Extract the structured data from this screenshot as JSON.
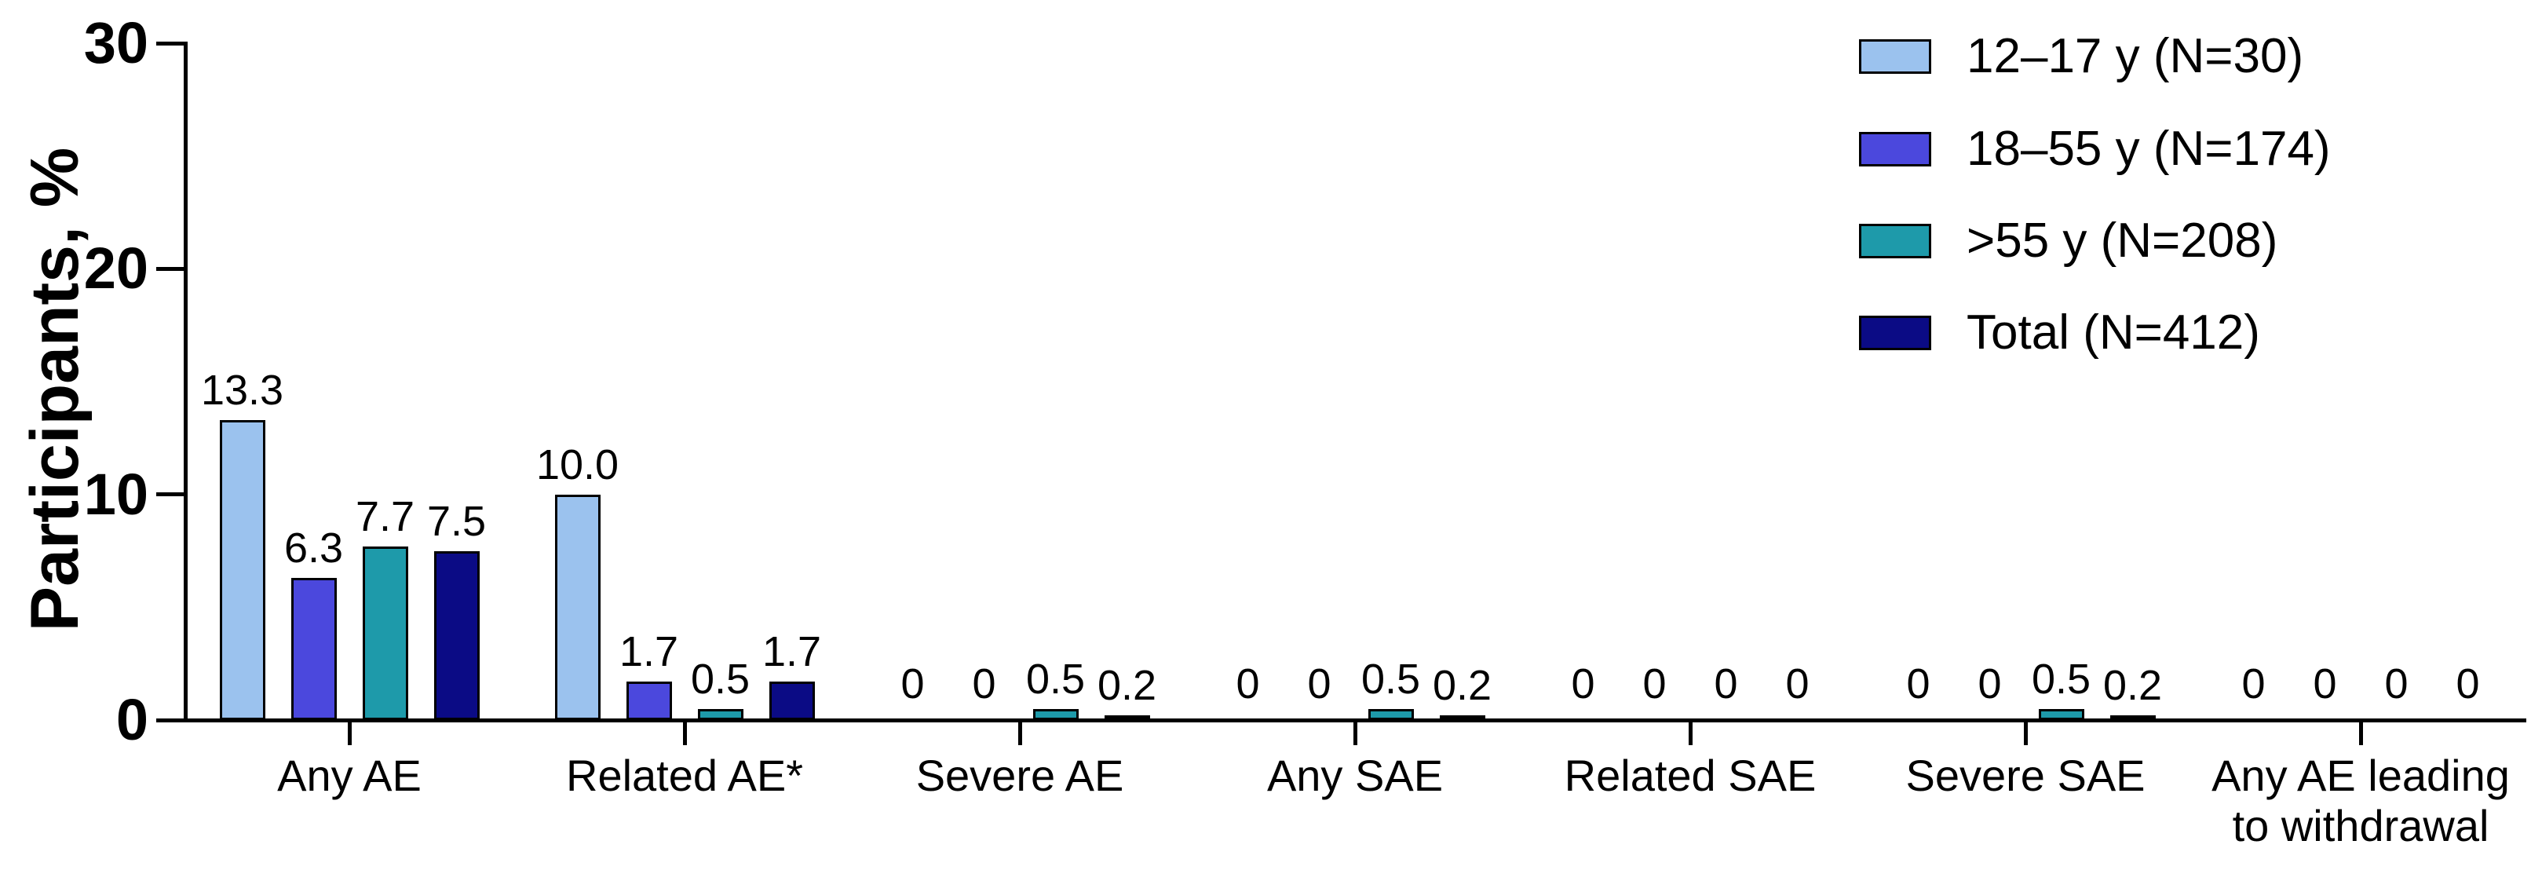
{
  "figure": {
    "background": "#ffffff",
    "axis_color": "#000000",
    "bar_outline_color": "#000000"
  },
  "chart_data": {
    "type": "bar",
    "title": "",
    "xlabel": "",
    "ylabel": "Participants, %",
    "ylim": [
      0,
      30
    ],
    "yticks": [
      "0",
      "10",
      "20",
      "30"
    ],
    "grid": false,
    "legend_position": "top-right",
    "categories": [
      "Any AE",
      "Related AE*",
      "Severe AE",
      "Any SAE",
      "Related SAE",
      "Severe SAE",
      "Any AE leading\nto withdrawal"
    ],
    "series": [
      {
        "name": "12–17 y (N=30)",
        "color": "#9BC2EE",
        "values": [
          13.3,
          10.0,
          0,
          0,
          0,
          0,
          0
        ]
      },
      {
        "name": "18–55 y (N=174)",
        "color": "#4B48DD",
        "values": [
          6.3,
          1.7,
          0,
          0,
          0,
          0,
          0
        ]
      },
      {
        "name": ">55 y (N=208)",
        "color": "#1E9AAA",
        "values": [
          7.7,
          0.5,
          0.5,
          0.5,
          0,
          0.5,
          0
        ]
      },
      {
        "name": "Total (N=412)",
        "color": "#0B0B85",
        "values": [
          7.5,
          1.7,
          0.2,
          0.2,
          0,
          0.2,
          0
        ]
      }
    ],
    "value_label_format": "one_decimal_nonzero_else_0"
  }
}
